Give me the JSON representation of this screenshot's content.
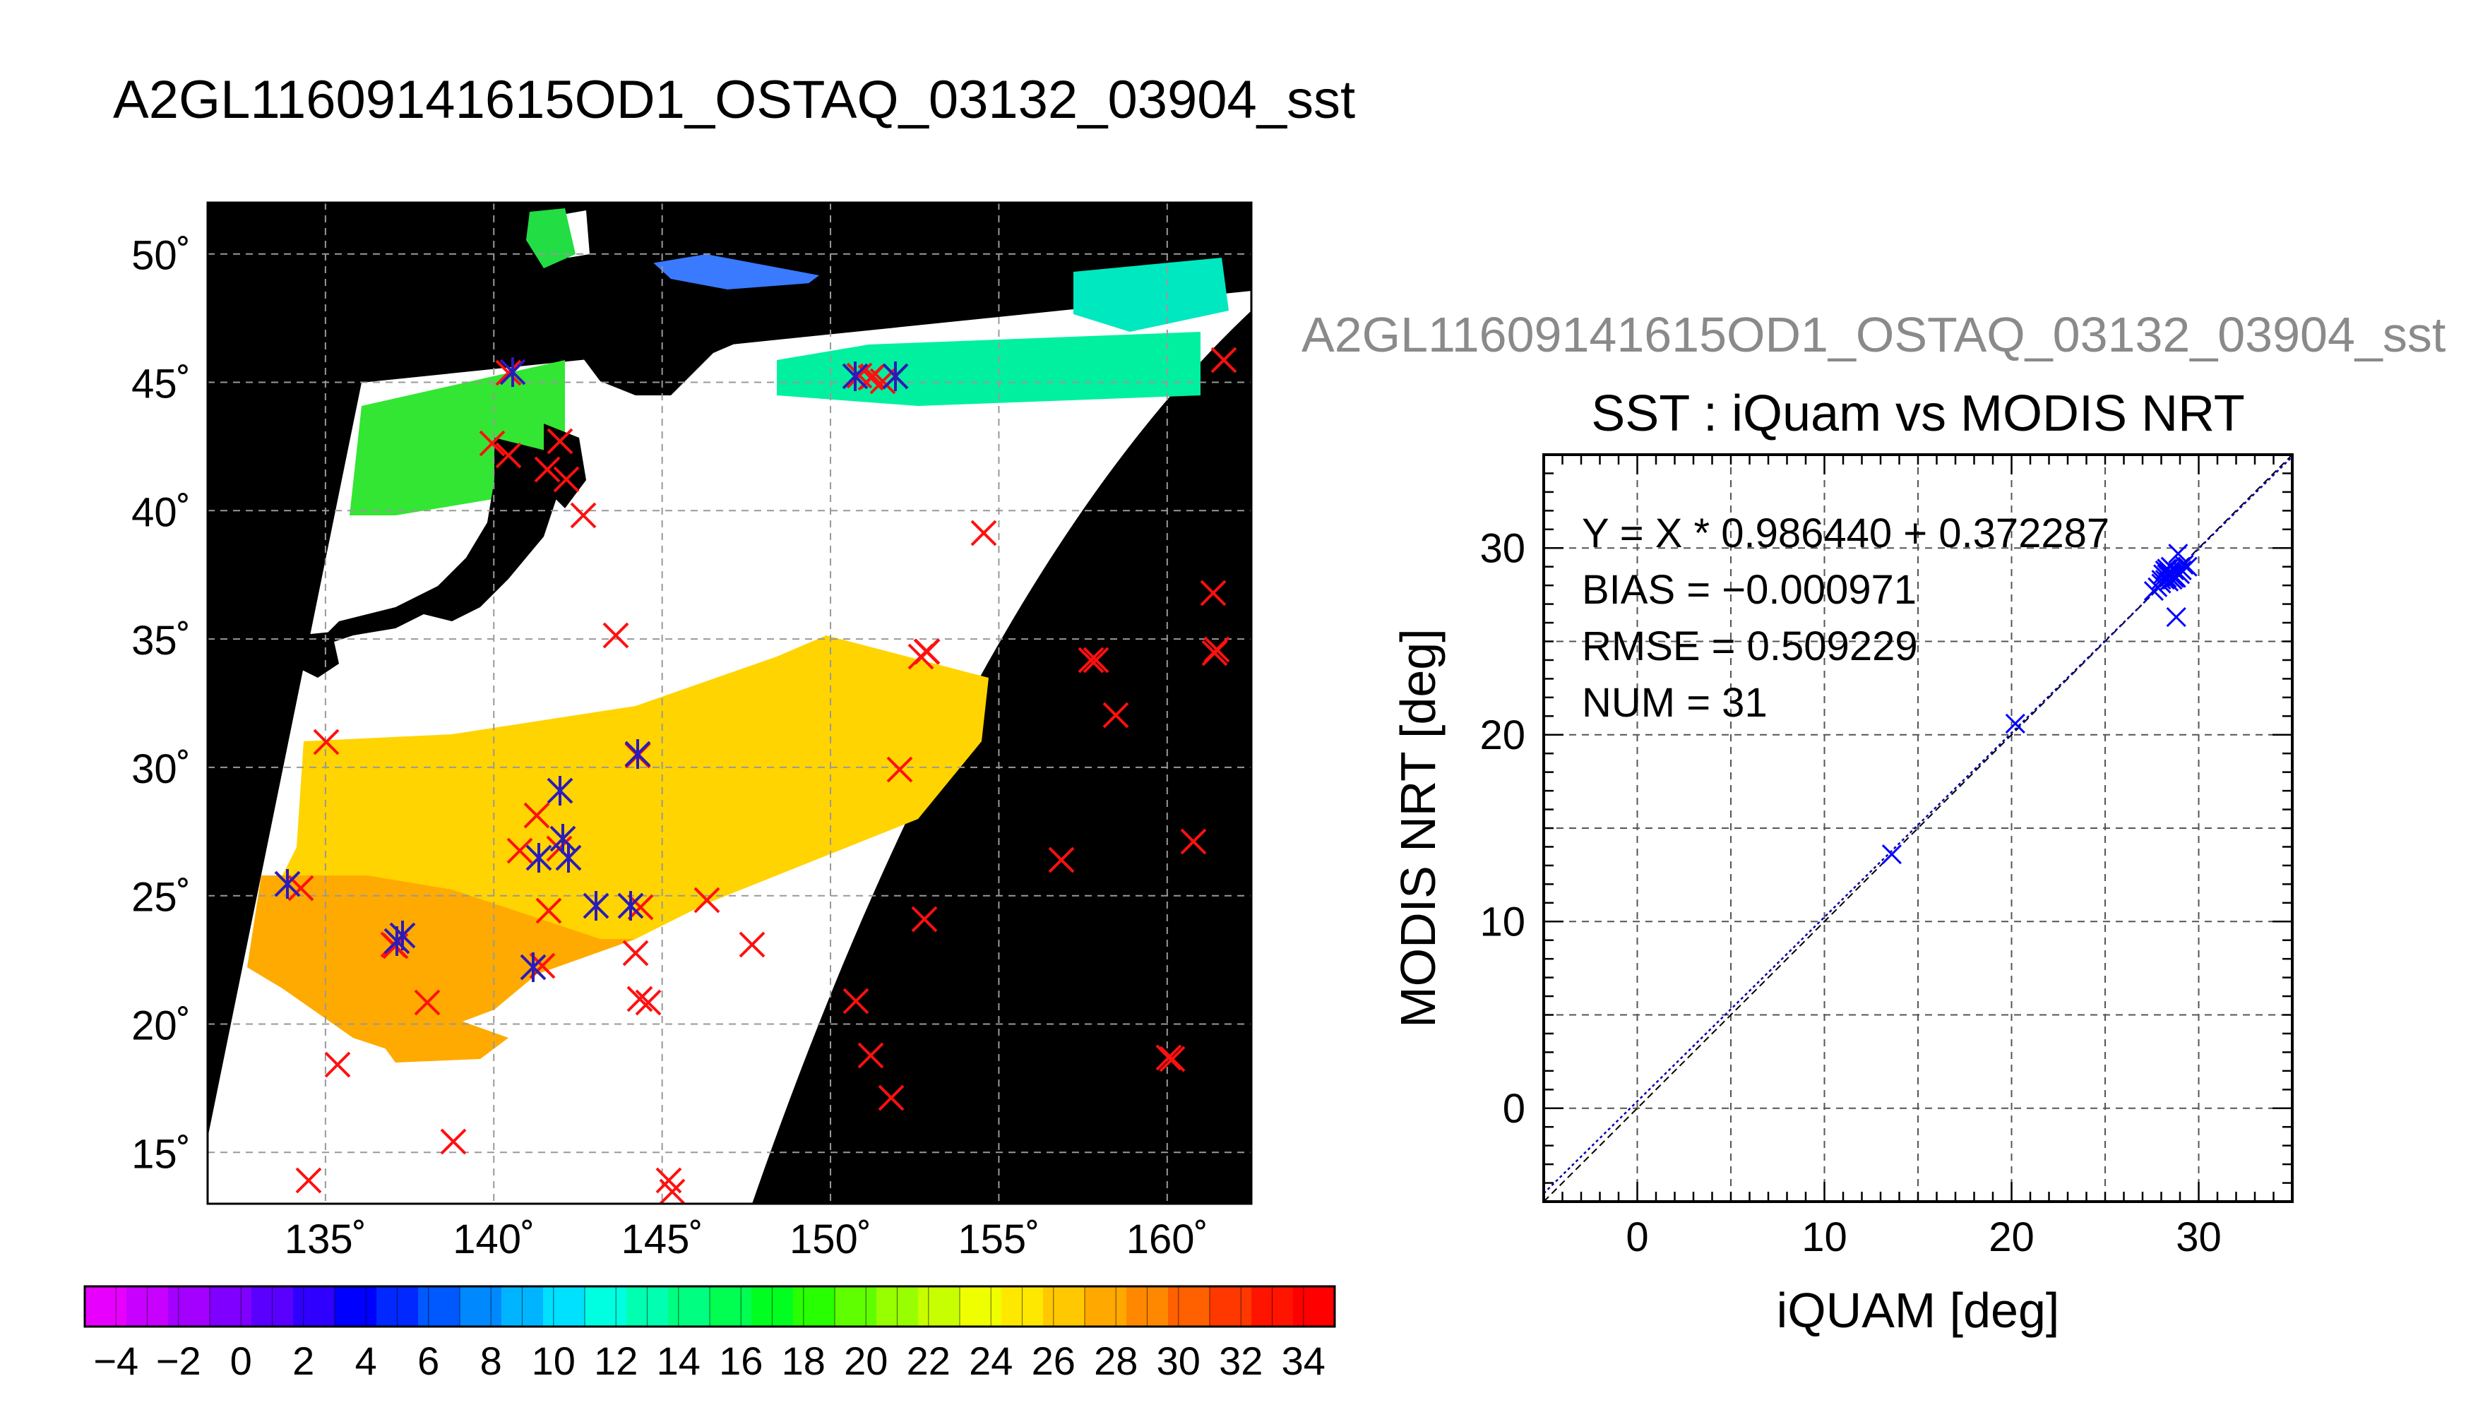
{
  "title": "A2GL11609141615OD1_OSTAQ_03132_03904_sst",
  "map": {
    "lat_labels": [
      "50˚",
      "45˚",
      "40˚",
      "35˚",
      "30˚",
      "25˚",
      "20˚",
      "15˚"
    ],
    "lon_labels": [
      "135˚",
      "140˚",
      "145˚",
      "150˚",
      "155˚",
      "160˚"
    ],
    "lat_values": [
      50,
      45,
      40,
      35,
      30,
      25,
      20,
      15
    ],
    "lon_values": [
      135,
      140,
      145,
      150,
      155,
      160
    ],
    "lat_range": [
      13,
      52
    ],
    "lon_range": [
      131.5,
      162.5
    ]
  },
  "colorbar": {
    "tick_labels": [
      "−4",
      "−2",
      "0",
      "2",
      "4",
      "6",
      "8",
      "10",
      "12",
      "14",
      "16",
      "18",
      "20",
      "22",
      "24",
      "26",
      "28",
      "30",
      "32",
      "34"
    ],
    "range": [
      -5,
      35
    ],
    "colors": [
      "#e800ff",
      "#c800ff",
      "#a400ff",
      "#8000ff",
      "#5a00ff",
      "#3000ff",
      "#0000ff",
      "#0028ff",
      "#0058ff",
      "#0088ff",
      "#00b4ff",
      "#00e0ff",
      "#00ffe0",
      "#00ffb0",
      "#00ff80",
      "#00ff50",
      "#00ff20",
      "#28ff00",
      "#60ff00",
      "#98ff00",
      "#c8ff00",
      "#f0ff00",
      "#ffe800",
      "#ffc800",
      "#ffa800",
      "#ff8800",
      "#ff6000",
      "#ff3800",
      "#ff1400",
      "#ff0000"
    ]
  },
  "scatter_supertitle": "A2GL11609141615OD1_OSTAQ_03132_03904_sst",
  "chart_data": {
    "type": "scatter",
    "title": "SST : iQuam vs MODIS NRT",
    "xlabel": "iQUAM [deg]",
    "ylabel": "MODIS NRT [deg]",
    "xlim": [
      -5,
      35
    ],
    "ylim": [
      -5,
      35
    ],
    "x_ticks": [
      0,
      10,
      20,
      30
    ],
    "y_ticks": [
      0,
      10,
      20,
      30
    ],
    "grid": true,
    "stats": [
      "Y = X * 0.986440 + 0.372287",
      "BIAS = −0.000971",
      "RMSE = 0.509229",
      "NUM = 31"
    ],
    "fit": {
      "slope": 0.98644,
      "intercept": 0.372287
    },
    "series": [
      {
        "color": "#0000ff",
        "points": [
          [
            13.6,
            13.6
          ],
          [
            20.2,
            20.6
          ],
          [
            27.6,
            27.7
          ],
          [
            27.8,
            27.9
          ],
          [
            28.0,
            28.3
          ],
          [
            28.1,
            28.6
          ],
          [
            28.2,
            28.8
          ],
          [
            28.3,
            28.4
          ],
          [
            28.3,
            28.9
          ],
          [
            28.4,
            28.5
          ],
          [
            28.4,
            28.2
          ],
          [
            28.5,
            28.7
          ],
          [
            28.5,
            29.0
          ],
          [
            28.6,
            28.3
          ],
          [
            28.6,
            28.6
          ],
          [
            28.7,
            28.5
          ],
          [
            28.7,
            28.8
          ],
          [
            28.8,
            26.3
          ],
          [
            28.8,
            28.4
          ],
          [
            28.9,
            29.7
          ],
          [
            29.0,
            28.6
          ],
          [
            29.1,
            28.8
          ],
          [
            29.2,
            29.1
          ],
          [
            29.4,
            29.0
          ],
          [
            28.0,
            28.1
          ],
          [
            28.2,
            28.3
          ],
          [
            28.4,
            28.7
          ],
          [
            28.6,
            28.9
          ],
          [
            28.9,
            28.7
          ],
          [
            28.3,
            28.6
          ],
          [
            28.7,
            28.4
          ]
        ]
      }
    ]
  }
}
